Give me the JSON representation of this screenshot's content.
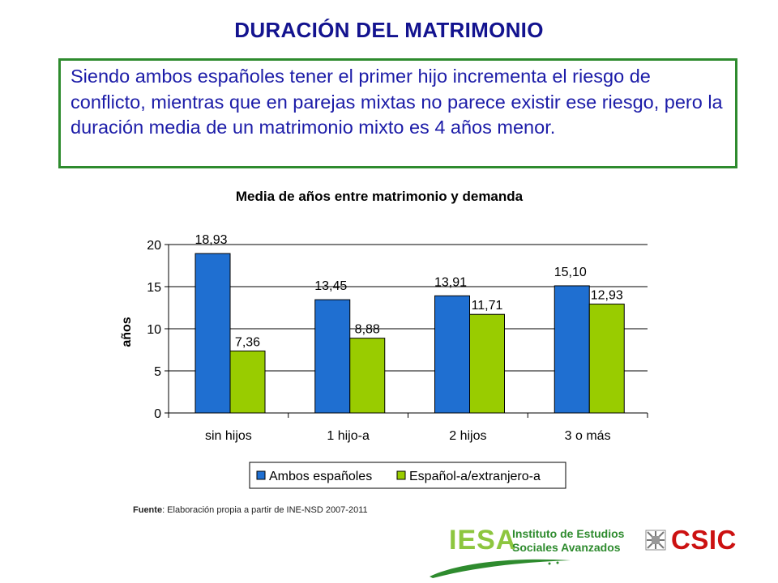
{
  "slide": {
    "title": "DURACIÓN DEL MATRIMONIO",
    "paragraph": "Siendo ambos españoles tener el primer hijo incrementa el riesgo de conflicto, mientras que en parejas mixtas no parece existir ese riesgo, pero la duración media de un matrimonio mixto es 4 años menor."
  },
  "chart_data": {
    "type": "bar",
    "title": "Media de años entre matrimonio y demanda",
    "xlabel": "",
    "ylabel": "años",
    "ylim": [
      0,
      20
    ],
    "yticks": [
      "0",
      "5",
      "10",
      "15",
      "20"
    ],
    "categories": [
      "sin hijos",
      "1 hijo-a",
      "2 hijos",
      "3 o más"
    ],
    "series": [
      {
        "name": "Ambos españoles",
        "color": "#1f6fd1",
        "values": [
          18.93,
          13.45,
          13.91,
          15.1
        ],
        "labels": [
          "18,93",
          "13,45",
          "13,91",
          "15,10"
        ]
      },
      {
        "name": "Español-a/extranjero-a",
        "color": "#99cc00",
        "values": [
          7.36,
          8.88,
          11.71,
          12.93
        ],
        "labels": [
          "7,36",
          "8,88",
          "11,71",
          "12,93"
        ]
      }
    ],
    "grid": true,
    "legend_position": "bottom"
  },
  "footer": {
    "source_label": "Fuente",
    "source_text": ": Elaboración propia a partir de INE-NSD 2007-2011"
  },
  "logos": {
    "iesa_acronym": "IESA",
    "iesa_name_line1": "Instituto de Estudios",
    "iesa_name_line2": "Sociales Avanzados",
    "csic_name": "CSIC"
  }
}
